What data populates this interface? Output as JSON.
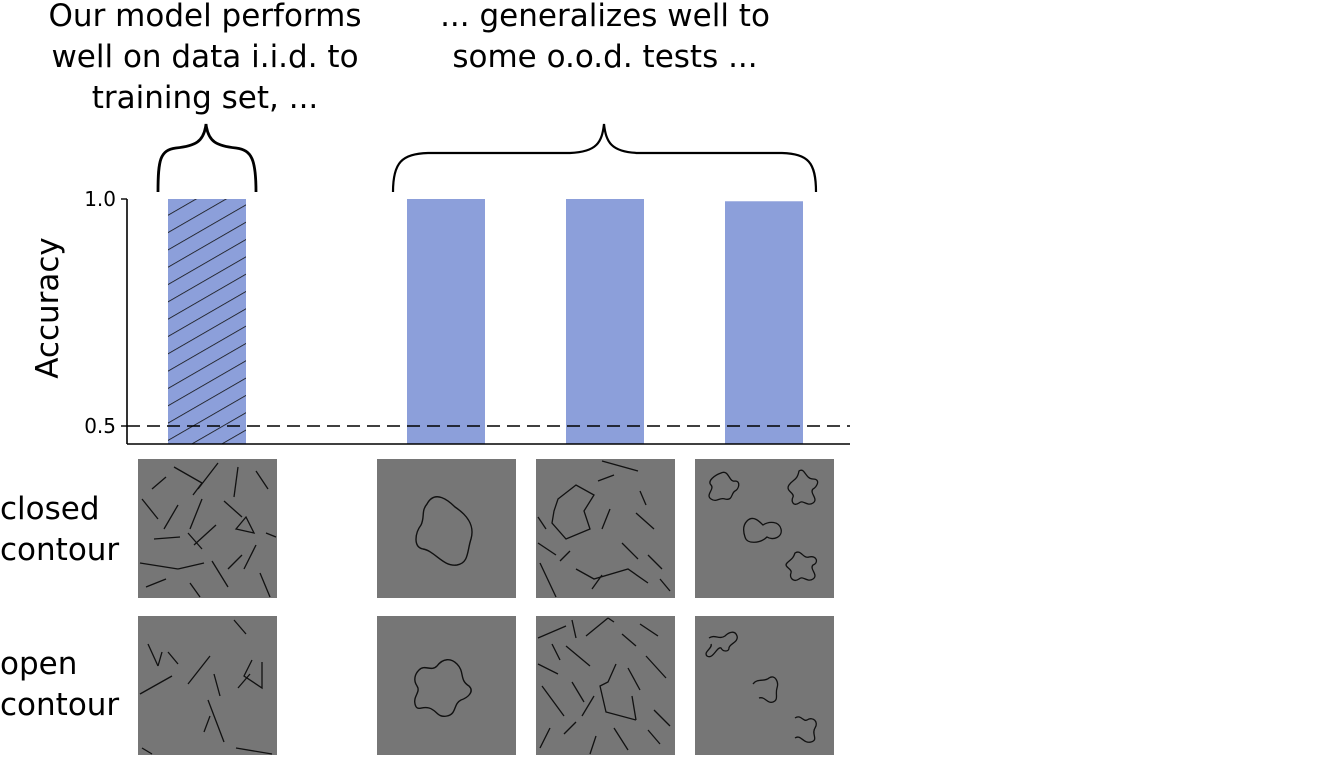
{
  "annotations": {
    "iid": "Our model performs well on data i.i.d. to training set, ...",
    "ood": "... generalizes well to some o.o.d. tests ..."
  },
  "rows": {
    "closed": [
      "closed",
      "contour"
    ],
    "open": [
      "open",
      "contour"
    ]
  },
  "chart_data": {
    "type": "bar",
    "title": "",
    "xlabel": "",
    "ylabel": "Accuracy",
    "ylim": [
      0.46,
      1.0
    ],
    "yticks": [
      0.5,
      1.0
    ],
    "ytick_labels": [
      "0.5",
      "1.0"
    ],
    "chance_level": 0.5,
    "grid": false,
    "categories": [
      "",
      "",
      "",
      ""
    ],
    "values": [
      1.0,
      1.0,
      1.0,
      0.995
    ],
    "bar_color": "#8c9fda",
    "hatched": [
      true,
      false,
      false,
      false
    ]
  }
}
